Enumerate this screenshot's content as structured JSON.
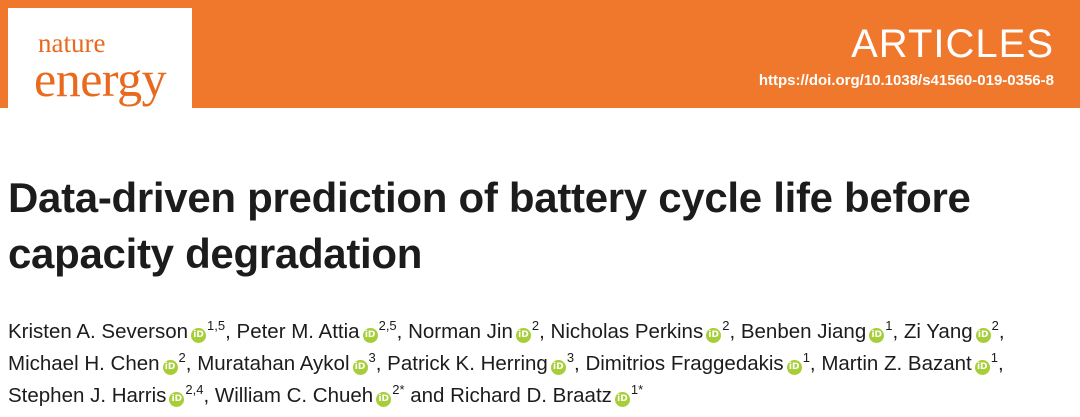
{
  "header": {
    "logo_line1": "nature",
    "logo_line2": "energy",
    "section": "ARTICLES",
    "doi": "https://doi.org/10.1038/s41560-019-0356-8"
  },
  "article": {
    "title": "Data-driven prediction of battery cycle life before capacity degradation"
  },
  "authors": [
    {
      "name": "Kristen A. Severson",
      "affil": "1,5",
      "sep": ", "
    },
    {
      "name": "Peter M. Attia",
      "affil": "2,5",
      "sep": ", "
    },
    {
      "name": "Norman Jin",
      "affil": "2",
      "sep": ", "
    },
    {
      "name": "Nicholas Perkins",
      "affil": "2",
      "sep": ", "
    },
    {
      "name": "Benben Jiang",
      "affil": "1",
      "sep": ", "
    },
    {
      "name": "Zi Yang",
      "affil": "2",
      "sep": ", "
    },
    {
      "name": "Michael H. Chen",
      "affil": "2",
      "sep": ", "
    },
    {
      "name": "Muratahan Aykol",
      "affil": "3",
      "sep": ", "
    },
    {
      "name": "Patrick K. Herring",
      "affil": "3",
      "sep": ", "
    },
    {
      "name": "Dimitrios Fraggedakis",
      "affil": "1",
      "sep": ", "
    },
    {
      "name": "Martin Z. Bazant",
      "affil": "1",
      "sep": ", "
    },
    {
      "name": "Stephen J. Harris",
      "affil": "2,4",
      "sep": ", "
    },
    {
      "name": "William C. Chueh",
      "affil": "2*",
      "sep": " and "
    },
    {
      "name": "Richard D. Braatz",
      "affil": "1*",
      "sep": ""
    }
  ]
}
